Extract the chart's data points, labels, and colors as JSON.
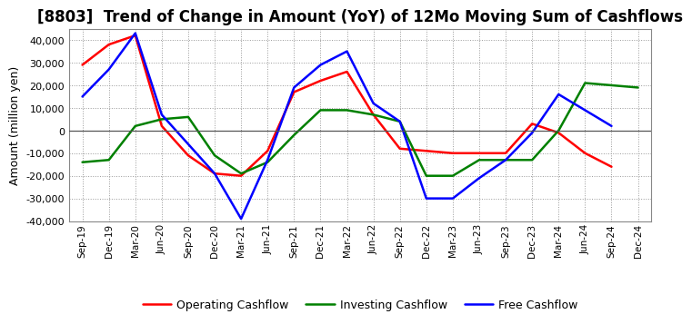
{
  "title": "[8803]  Trend of Change in Amount (YoY) of 12Mo Moving Sum of Cashflows",
  "ylabel": "Amount (million yen)",
  "xlabels": [
    "Sep-19",
    "Dec-19",
    "Mar-20",
    "Jun-20",
    "Sep-20",
    "Dec-20",
    "Mar-21",
    "Jun-21",
    "Sep-21",
    "Dec-21",
    "Mar-22",
    "Jun-22",
    "Sep-22",
    "Dec-22",
    "Mar-23",
    "Jun-23",
    "Sep-23",
    "Dec-23",
    "Mar-24",
    "Jun-24",
    "Sep-24",
    "Dec-24"
  ],
  "operating": [
    29000,
    38000,
    42000,
    2000,
    -11000,
    -19000,
    -20000,
    -9000,
    17000,
    22000,
    26000,
    7000,
    -8000,
    -9000,
    -10000,
    -10000,
    -10000,
    3000,
    -1000,
    -10000,
    -16000,
    null
  ],
  "investing": [
    -14000,
    -13000,
    2000,
    5000,
    6000,
    -11000,
    -19000,
    -14000,
    -2000,
    9000,
    9000,
    7000,
    4000,
    -20000,
    -20000,
    -13000,
    -13000,
    -13000,
    0,
    21000,
    20000,
    19000
  ],
  "free": [
    15000,
    27000,
    43000,
    7000,
    -6000,
    -19000,
    -39000,
    -13000,
    19000,
    29000,
    35000,
    12000,
    4000,
    -30000,
    -30000,
    -21000,
    -13000,
    -1000,
    16000,
    9000,
    2000,
    null
  ],
  "ylim": [
    -40000,
    45000
  ],
  "yticks": [
    -40000,
    -30000,
    -20000,
    -10000,
    0,
    10000,
    20000,
    30000,
    40000
  ],
  "colors": {
    "operating": "#ff0000",
    "investing": "#008000",
    "free": "#0000ff"
  },
  "bg_color": "#ffffff",
  "plot_bg": "#ffffff",
  "grid_color": "#999999",
  "linewidth": 1.8,
  "title_fontsize": 12,
  "legend_labels": [
    "Operating Cashflow",
    "Investing Cashflow",
    "Free Cashflow"
  ]
}
